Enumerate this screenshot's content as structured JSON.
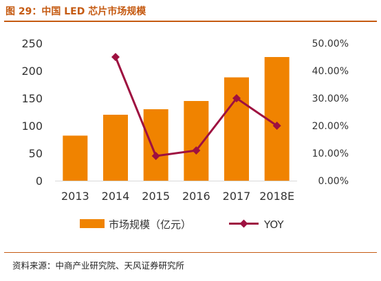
{
  "figure": {
    "title": "图 29：中国 LED 芯片市场规模",
    "source": "资料来源：中商产业研究院、天风证券研究所"
  },
  "colors": {
    "accent": "#c55a11",
    "bar": "#f08300",
    "line": "#9e1040",
    "tick_text": "#333333"
  },
  "chart_data": {
    "type": "bar",
    "title": "",
    "categories": [
      "2013",
      "2014",
      "2015",
      "2016",
      "2017",
      "2018E"
    ],
    "series": [
      {
        "name": "市场规模（亿元）",
        "type": "bar",
        "axis": "left",
        "values": [
          82,
          120,
          130,
          145,
          188,
          225
        ]
      },
      {
        "name": "YOY",
        "type": "line",
        "axis": "right",
        "marker": "diamond",
        "values": [
          null,
          0.45,
          0.09,
          0.11,
          0.3,
          0.2
        ]
      }
    ],
    "y_left": {
      "ylim": [
        0,
        250
      ],
      "ticks": [
        0,
        50,
        100,
        150,
        200,
        250
      ],
      "tick_labels": [
        "0",
        "50",
        "100",
        "150",
        "200",
        "250"
      ]
    },
    "y_right": {
      "ylim": [
        0,
        0.5
      ],
      "ticks": [
        0,
        0.1,
        0.2,
        0.3,
        0.4,
        0.5
      ],
      "tick_labels": [
        "0.00%",
        "10.00%",
        "20.00%",
        "30.00%",
        "40.00%",
        "50.00%"
      ]
    },
    "xlabel": "",
    "ylabel": "",
    "grid": false,
    "legend": "bottom"
  }
}
